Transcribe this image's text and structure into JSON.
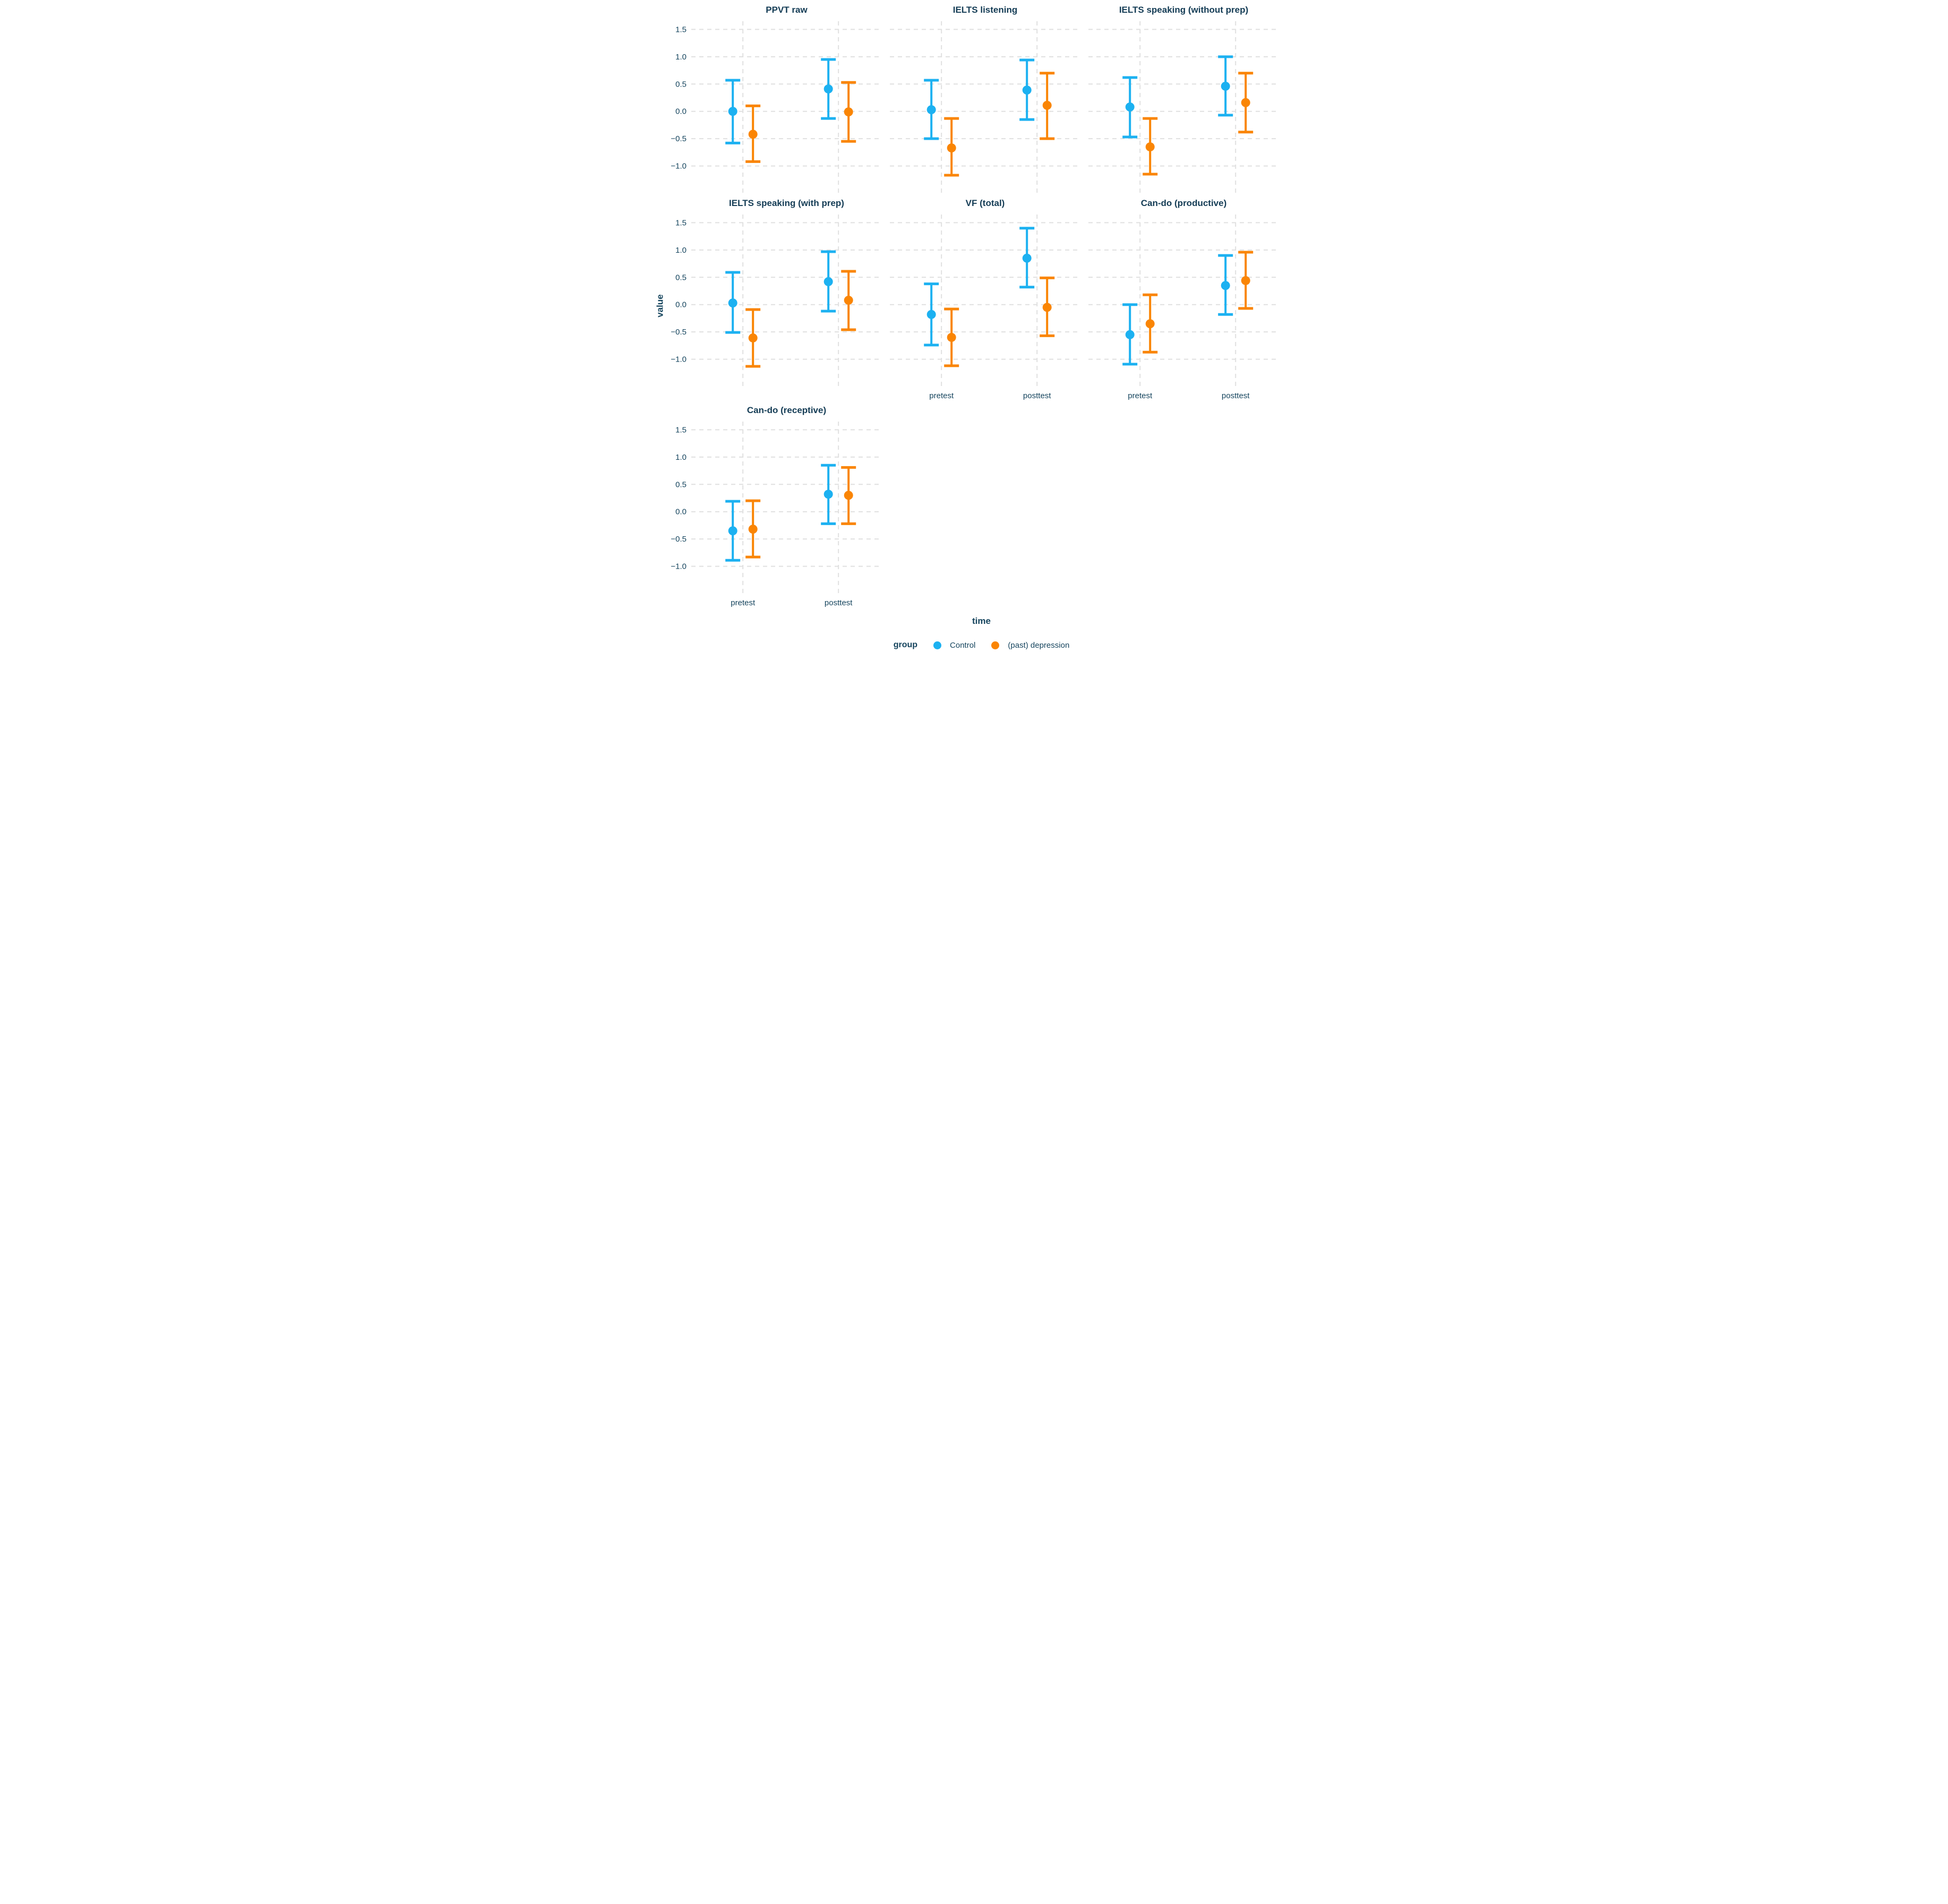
{
  "chart_data": {
    "type": "pointrange",
    "title": "",
    "x_title": "time",
    "y_title": "value",
    "categories": [
      "pretest",
      "posttest"
    ],
    "y_ticks": [
      1.5,
      1.0,
      0.5,
      0.0,
      -0.5,
      -1.0
    ],
    "ylim": [
      -1.5,
      1.65
    ],
    "grid": "dashed-major",
    "legend": {
      "title": "group",
      "position": "bottom",
      "entries": [
        {
          "label": "Control",
          "color": "#1CB1F1"
        },
        {
          "label": "(past) depression",
          "color": "#FA8504"
        }
      ]
    },
    "panels": [
      {
        "title": "PPVT raw",
        "series": [
          {
            "group": "Control",
            "points": [
              {
                "x": "pretest",
                "y": 0.0,
                "lo": -0.58,
                "hi": 0.57
              },
              {
                "x": "posttest",
                "y": 0.41,
                "lo": -0.13,
                "hi": 0.95
              }
            ]
          },
          {
            "group": "(past) depression",
            "points": [
              {
                "x": "pretest",
                "y": -0.42,
                "lo": -0.92,
                "hi": 0.1
              },
              {
                "x": "posttest",
                "y": -0.01,
                "lo": -0.55,
                "hi": 0.53
              }
            ]
          }
        ]
      },
      {
        "title": "IELTS listening",
        "series": [
          {
            "group": "Control",
            "points": [
              {
                "x": "pretest",
                "y": 0.03,
                "lo": -0.5,
                "hi": 0.57
              },
              {
                "x": "posttest",
                "y": 0.39,
                "lo": -0.15,
                "hi": 0.94
              }
            ]
          },
          {
            "group": "(past) depression",
            "points": [
              {
                "x": "pretest",
                "y": -0.67,
                "lo": -1.17,
                "hi": -0.13
              },
              {
                "x": "posttest",
                "y": 0.11,
                "lo": -0.5,
                "hi": 0.7
              }
            ]
          }
        ]
      },
      {
        "title": "IELTS speaking (without prep)",
        "series": [
          {
            "group": "Control",
            "points": [
              {
                "x": "pretest",
                "y": 0.08,
                "lo": -0.47,
                "hi": 0.62
              },
              {
                "x": "posttest",
                "y": 0.46,
                "lo": -0.07,
                "hi": 1.0
              }
            ]
          },
          {
            "group": "(past) depression",
            "points": [
              {
                "x": "pretest",
                "y": -0.65,
                "lo": -1.15,
                "hi": -0.13
              },
              {
                "x": "posttest",
                "y": 0.16,
                "lo": -0.38,
                "hi": 0.7
              }
            ]
          }
        ]
      },
      {
        "title": "IELTS speaking (with prep)",
        "series": [
          {
            "group": "Control",
            "points": [
              {
                "x": "pretest",
                "y": 0.03,
                "lo": -0.51,
                "hi": 0.59
              },
              {
                "x": "posttest",
                "y": 0.42,
                "lo": -0.12,
                "hi": 0.97
              }
            ]
          },
          {
            "group": "(past) depression",
            "points": [
              {
                "x": "pretest",
                "y": -0.61,
                "lo": -1.13,
                "hi": -0.09
              },
              {
                "x": "posttest",
                "y": 0.08,
                "lo": -0.46,
                "hi": 0.61
              }
            ]
          }
        ]
      },
      {
        "title": "VF (total)",
        "series": [
          {
            "group": "Control",
            "points": [
              {
                "x": "pretest",
                "y": -0.18,
                "lo": -0.74,
                "hi": 0.38
              },
              {
                "x": "posttest",
                "y": 0.85,
                "lo": 0.32,
                "hi": 1.4
              }
            ]
          },
          {
            "group": "(past) depression",
            "points": [
              {
                "x": "pretest",
                "y": -0.6,
                "lo": -1.12,
                "hi": -0.08
              },
              {
                "x": "posttest",
                "y": -0.05,
                "lo": -0.57,
                "hi": 0.49
              }
            ]
          }
        ]
      },
      {
        "title": "Can-do (productive)",
        "series": [
          {
            "group": "Control",
            "points": [
              {
                "x": "pretest",
                "y": -0.55,
                "lo": -1.09,
                "hi": 0.0
              },
              {
                "x": "posttest",
                "y": 0.35,
                "lo": -0.18,
                "hi": 0.9
              }
            ]
          },
          {
            "group": "(past) depression",
            "points": [
              {
                "x": "pretest",
                "y": -0.35,
                "lo": -0.87,
                "hi": 0.18
              },
              {
                "x": "posttest",
                "y": 0.44,
                "lo": -0.07,
                "hi": 0.96
              }
            ]
          }
        ]
      },
      {
        "title": "Can-do (receptive)",
        "series": [
          {
            "group": "Control",
            "points": [
              {
                "x": "pretest",
                "y": -0.35,
                "lo": -0.89,
                "hi": 0.19
              },
              {
                "x": "posttest",
                "y": 0.32,
                "lo": -0.22,
                "hi": 0.85
              }
            ]
          },
          {
            "group": "(past) depression",
            "points": [
              {
                "x": "pretest",
                "y": -0.32,
                "lo": -0.83,
                "hi": 0.2
              },
              {
                "x": "posttest",
                "y": 0.3,
                "lo": -0.22,
                "hi": 0.81
              }
            ]
          }
        ]
      }
    ],
    "style_colors": {
      "text_navy": "#16455E",
      "title_navy": "#143C55",
      "gridline": "#E0E0E0"
    }
  }
}
